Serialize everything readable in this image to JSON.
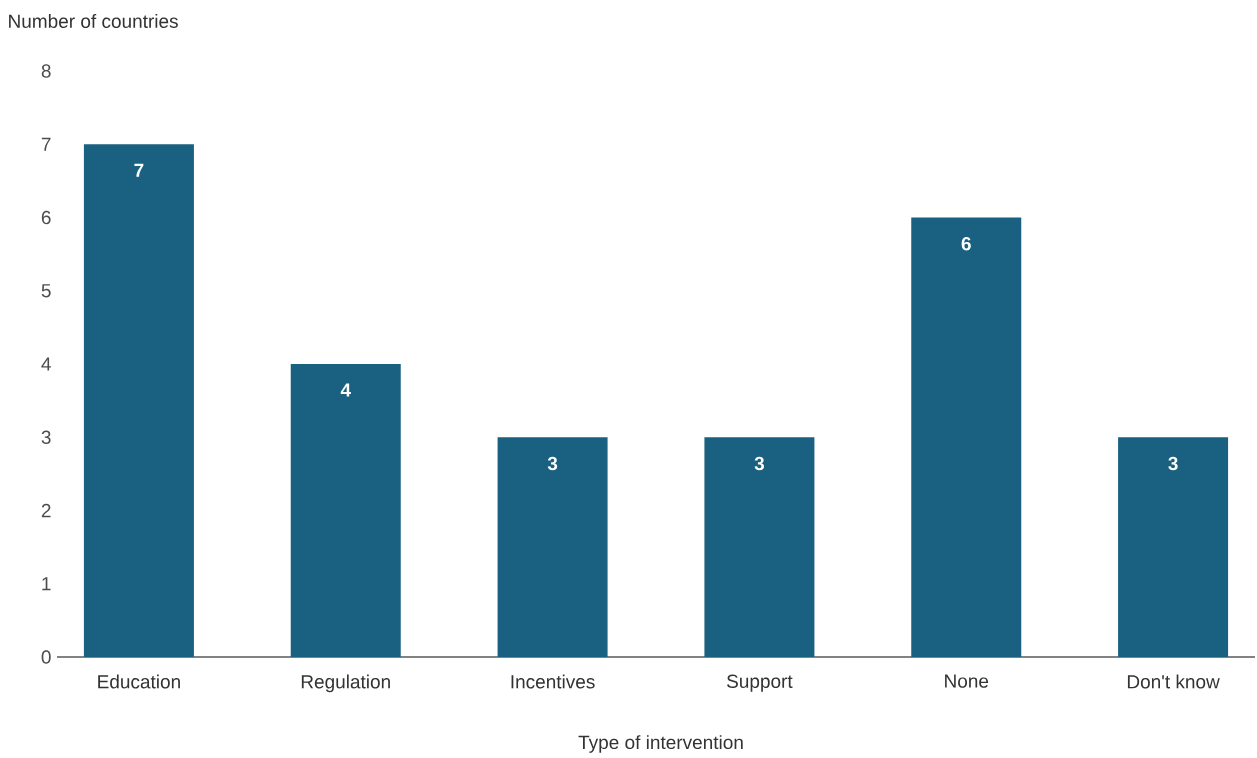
{
  "chart_data": {
    "type": "bar",
    "xlabel": "Type of intervention",
    "ylabel": "Number of countries",
    "categories": [
      "Education",
      "Regulation",
      "Incentives",
      "Support",
      "None",
      "Don't know"
    ],
    "values": [
      7,
      4,
      3,
      3,
      6,
      3
    ],
    "color": "#1a6080",
    "ylim": [
      0,
      8
    ],
    "yticks": [
      0,
      1,
      2,
      3,
      4,
      5,
      6,
      7,
      8
    ],
    "data_labels": true
  }
}
